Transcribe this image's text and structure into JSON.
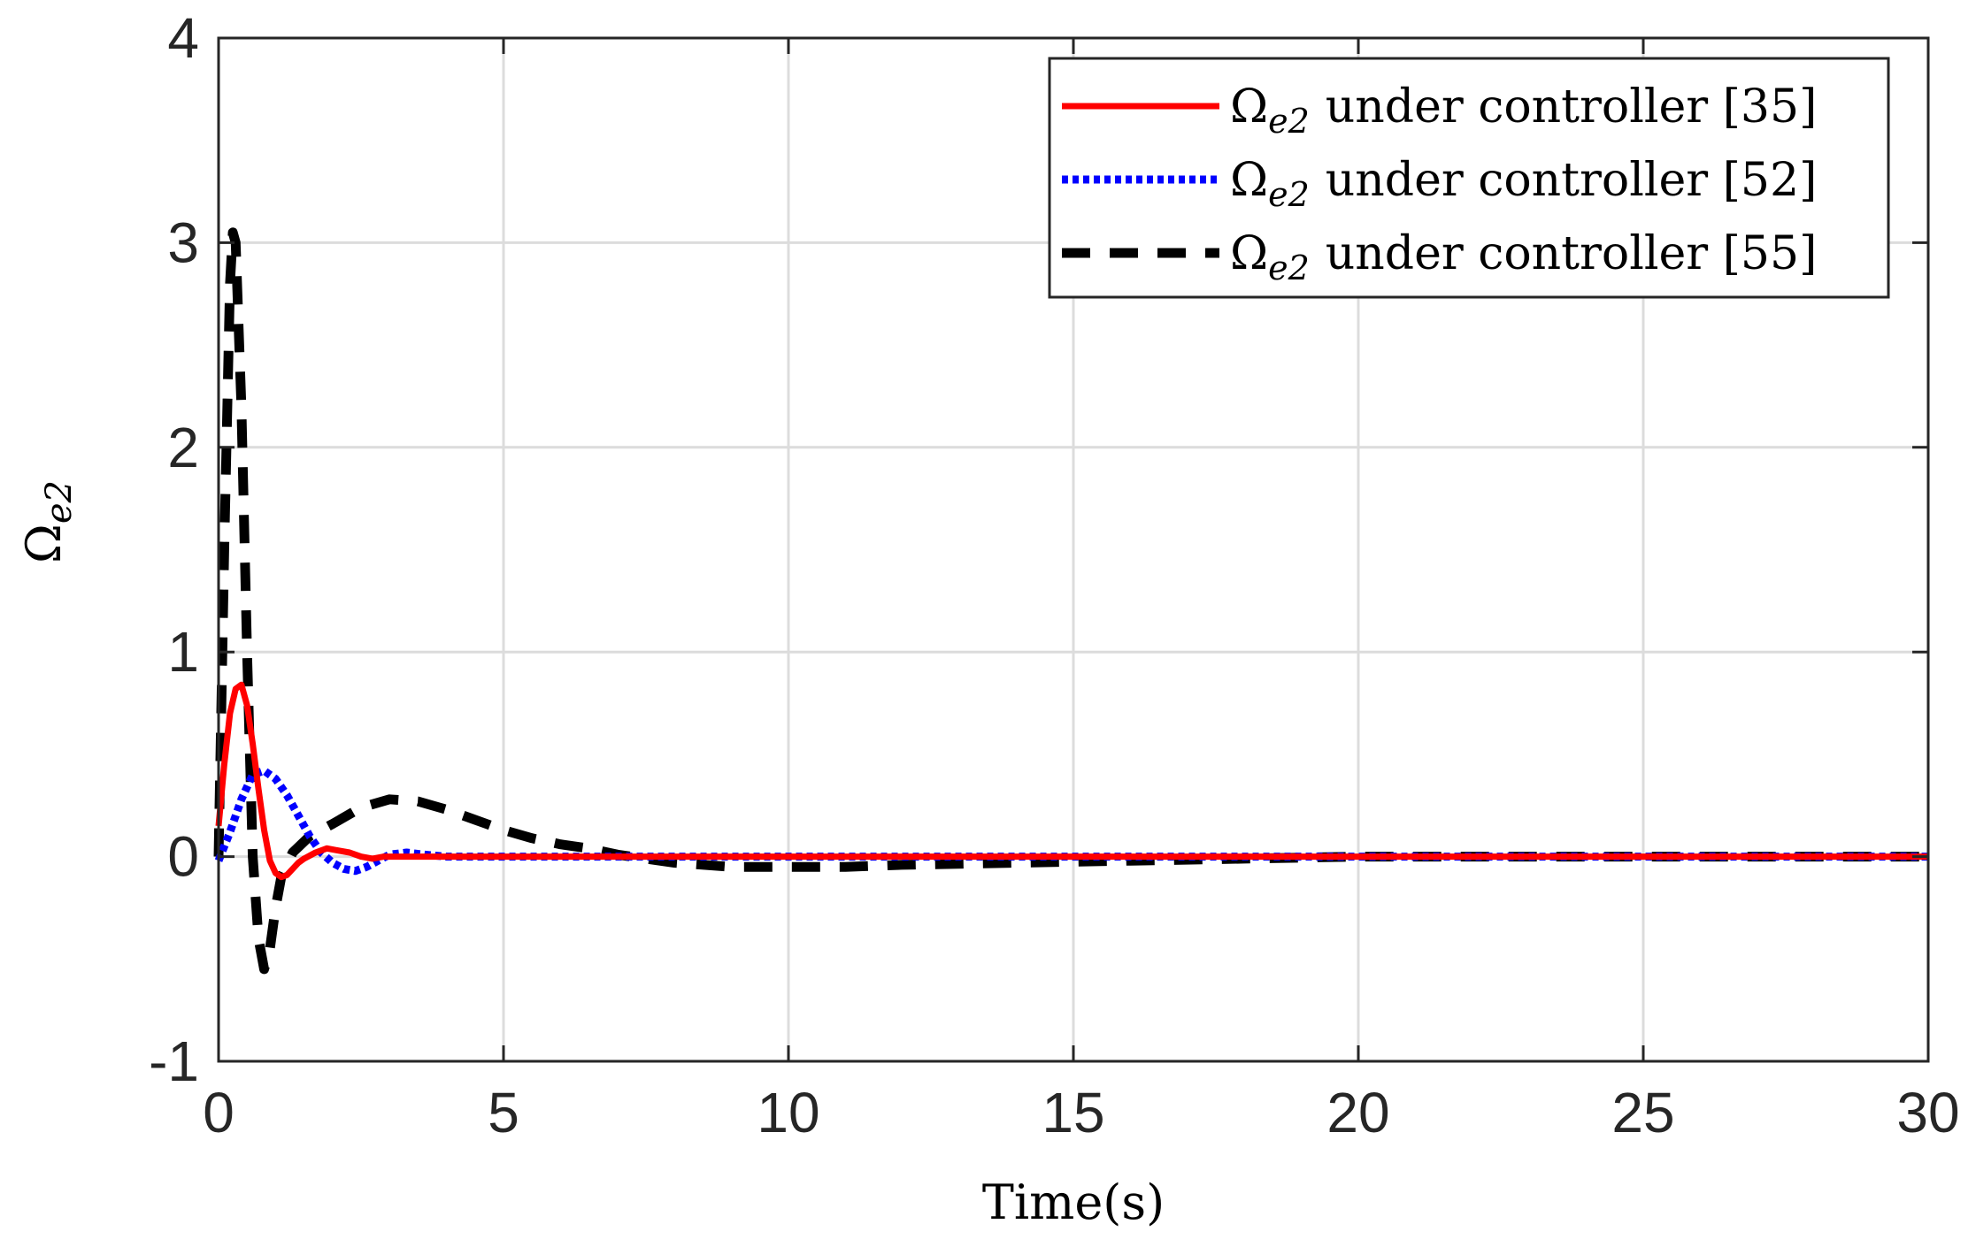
{
  "chart_data": {
    "type": "line",
    "xlabel": "Time(s)",
    "ylabel": "Ω",
    "ylabel_sub": "e2",
    "xlim": [
      0,
      30
    ],
    "ylim": [
      -1,
      4
    ],
    "xticks": [
      "0",
      "5",
      "10",
      "15",
      "20",
      "25",
      "30"
    ],
    "yticks": [
      "-1",
      "0",
      "1",
      "2",
      "3",
      "4"
    ],
    "grid": true,
    "legend_position": "top-right",
    "series": [
      {
        "name": "Ω_e2 under controller [35]",
        "label_symbol": "Ω",
        "label_sub": "e2",
        "label_text": "under controller [35]",
        "color": "#ff0000",
        "style": "solid",
        "x": [
          0,
          0.1,
          0.2,
          0.3,
          0.4,
          0.5,
          0.6,
          0.7,
          0.8,
          0.9,
          1.0,
          1.1,
          1.2,
          1.3,
          1.4,
          1.5,
          1.7,
          1.9,
          2.1,
          2.3,
          2.5,
          2.7,
          2.9,
          3.1,
          3.5,
          4,
          5,
          10,
          15,
          20,
          25,
          30
        ],
        "y": [
          0.15,
          0.45,
          0.7,
          0.82,
          0.84,
          0.74,
          0.55,
          0.33,
          0.13,
          -0.02,
          -0.08,
          -0.1,
          -0.09,
          -0.06,
          -0.03,
          -0.01,
          0.02,
          0.04,
          0.03,
          0.02,
          0.0,
          -0.01,
          0.0,
          0.0,
          0.0,
          0.0,
          0.0,
          0.0,
          0.0,
          0.0,
          0.0,
          0.0
        ]
      },
      {
        "name": "Ω_e2 under controller [52]",
        "label_symbol": "Ω",
        "label_sub": "e2",
        "label_text": "under controller [52]",
        "color": "#0000ff",
        "style": "dotted",
        "x": [
          0,
          0.2,
          0.4,
          0.6,
          0.8,
          1.0,
          1.2,
          1.4,
          1.6,
          1.8,
          2.0,
          2.2,
          2.4,
          2.6,
          2.8,
          3.0,
          3.3,
          3.6,
          4,
          5,
          10,
          15,
          20,
          25,
          30
        ],
        "y": [
          -0.02,
          0.12,
          0.28,
          0.4,
          0.42,
          0.38,
          0.3,
          0.2,
          0.1,
          0.02,
          -0.03,
          -0.06,
          -0.07,
          -0.05,
          -0.02,
          0.01,
          0.02,
          0.01,
          0.0,
          0.0,
          0.0,
          0.0,
          0.0,
          0.0,
          0.0
        ]
      },
      {
        "name": "Ω_e2 under controller [55]",
        "label_symbol": "Ω",
        "label_sub": "e2",
        "label_text": "under controller [55]",
        "color": "#000000",
        "style": "dashed",
        "x": [
          0,
          0.1,
          0.2,
          0.25,
          0.3,
          0.4,
          0.5,
          0.6,
          0.7,
          0.8,
          0.9,
          1.0,
          1.1,
          1.3,
          1.6,
          2.0,
          2.5,
          3.0,
          3.5,
          4.0,
          4.5,
          5.0,
          5.5,
          6.0,
          6.5,
          7.0,
          7.5,
          8.0,
          9.0,
          10.0,
          11.0,
          12.0,
          14.0,
          16.0,
          18.0,
          20.0,
          25.0,
          30.0
        ],
        "y": [
          0.0,
          1.5,
          2.8,
          3.05,
          3.0,
          2.2,
          1.0,
          0.0,
          -0.4,
          -0.55,
          -0.45,
          -0.25,
          -0.1,
          0.02,
          0.1,
          0.16,
          0.24,
          0.28,
          0.27,
          0.23,
          0.18,
          0.13,
          0.09,
          0.06,
          0.04,
          0.01,
          -0.01,
          -0.03,
          -0.05,
          -0.05,
          -0.05,
          -0.04,
          -0.03,
          -0.02,
          -0.01,
          0.0,
          0.0,
          0.0
        ]
      }
    ]
  }
}
